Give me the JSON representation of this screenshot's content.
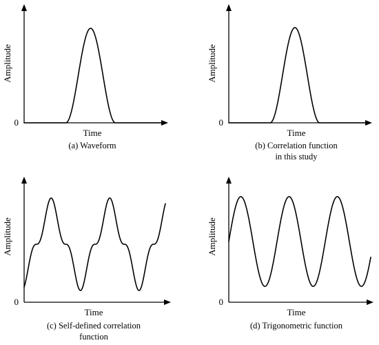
{
  "panels": [
    {
      "ylabel": "Amplitude",
      "xlabel": "Time",
      "origin": "0",
      "caption": [
        "(a) Waveform"
      ],
      "curve": "pulse"
    },
    {
      "ylabel": "Amplitude",
      "xlabel": "Time",
      "origin": "0",
      "caption": [
        "(b) Correlation function",
        "in this study"
      ],
      "curve": "pulse"
    },
    {
      "ylabel": "Amplitude",
      "xlabel": "Time",
      "origin": "0",
      "caption": [
        "(c) Self-defined correlation",
        "function"
      ],
      "curve": "self-defined-periodic"
    },
    {
      "ylabel": "Amplitude",
      "xlabel": "Time",
      "origin": "0",
      "caption": [
        "(d) Trigonometric function"
      ],
      "curve": "sine"
    }
  ],
  "colors": {
    "line": "#000000",
    "background": "#ffffff"
  }
}
